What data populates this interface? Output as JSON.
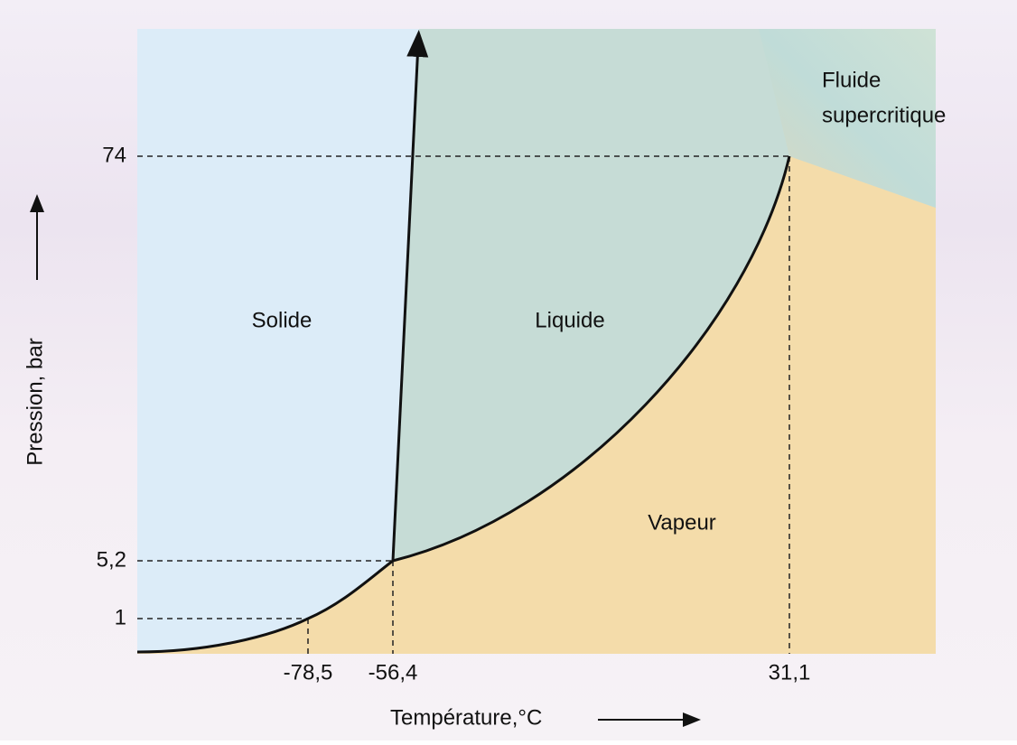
{
  "axes": {
    "x_label": "Température,°C",
    "y_label": "Pression, bar",
    "x_ticks": [
      "-78,5",
      "-56,4",
      "31,1"
    ],
    "y_ticks": [
      "74",
      "5,2",
      "1"
    ]
  },
  "regions": {
    "solid": "Solide",
    "liquid": "Liquide",
    "vapor": "Vapeur",
    "supercritical": [
      "Fluide",
      "supercritique"
    ]
  }
}
